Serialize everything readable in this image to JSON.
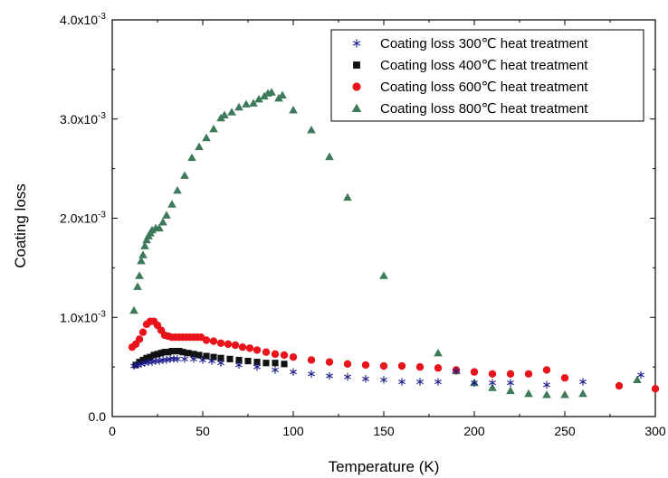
{
  "chart_data": {
    "type": "scatter",
    "title": "",
    "xlabel": "Temperature (K)",
    "ylabel": "Coating loss",
    "xlim": [
      0,
      300
    ],
    "ylim": [
      0,
      0.004
    ],
    "xticks": [
      0,
      50,
      100,
      150,
      200,
      250,
      300
    ],
    "xtick_labels": [
      "0",
      "50",
      "100",
      "150",
      "200",
      "250",
      "300"
    ],
    "yticks": [
      0,
      0.001,
      0.002,
      0.003,
      0.004
    ],
    "ytick_labels": [
      {
        "mant": "0.0",
        "exp": ""
      },
      {
        "mant": "1.0x10",
        "exp": "-3"
      },
      {
        "mant": "2.0x10",
        "exp": "-3"
      },
      {
        "mant": "3.0x10",
        "exp": "-3"
      },
      {
        "mant": "4.0x10",
        "exp": "-3"
      }
    ],
    "grid": false,
    "legend_position": "top-right",
    "series": [
      {
        "name": "Coating loss 300℃ heat treatment",
        "marker": "asterisk",
        "color": "#1a1a8c",
        "points": [
          [
            12,
            0.00051
          ],
          [
            14,
            0.00052
          ],
          [
            16,
            0.00053
          ],
          [
            18,
            0.00054
          ],
          [
            20,
            0.00055
          ],
          [
            22,
            0.00055
          ],
          [
            24,
            0.00056
          ],
          [
            26,
            0.00056
          ],
          [
            28,
            0.00057
          ],
          [
            30,
            0.00057
          ],
          [
            32,
            0.00058
          ],
          [
            34,
            0.00058
          ],
          [
            36,
            0.00058
          ],
          [
            40,
            0.00058
          ],
          [
            45,
            0.00058
          ],
          [
            50,
            0.00057
          ],
          [
            55,
            0.00056
          ],
          [
            60,
            0.00054
          ],
          [
            70,
            0.00052
          ],
          [
            80,
            0.0005
          ],
          [
            90,
            0.00047
          ],
          [
            100,
            0.00045
          ],
          [
            110,
            0.00043
          ],
          [
            120,
            0.00041
          ],
          [
            130,
            0.0004
          ],
          [
            140,
            0.00038
          ],
          [
            150,
            0.00037
          ],
          [
            160,
            0.00035
          ],
          [
            170,
            0.00035
          ],
          [
            180,
            0.00035
          ],
          [
            190,
            0.00046
          ],
          [
            200,
            0.00034
          ],
          [
            210,
            0.00034
          ],
          [
            220,
            0.00034
          ],
          [
            240,
            0.00032
          ],
          [
            260,
            0.00035
          ],
          [
            292,
            0.00042
          ]
        ]
      },
      {
        "name": "Coating loss 400℃ heat treatment",
        "marker": "square",
        "color": "#111111",
        "points": [
          [
            13,
            0.00052
          ],
          [
            15,
            0.00055
          ],
          [
            17,
            0.00057
          ],
          [
            19,
            0.00059
          ],
          [
            21,
            0.0006
          ],
          [
            23,
            0.00062
          ],
          [
            25,
            0.00063
          ],
          [
            27,
            0.00064
          ],
          [
            29,
            0.00065
          ],
          [
            31,
            0.00065
          ],
          [
            33,
            0.00066
          ],
          [
            35,
            0.00066
          ],
          [
            37,
            0.00066
          ],
          [
            39,
            0.00065
          ],
          [
            42,
            0.00064
          ],
          [
            45,
            0.00063
          ],
          [
            48,
            0.00062
          ],
          [
            52,
            0.00061
          ],
          [
            56,
            0.0006
          ],
          [
            60,
            0.00059
          ],
          [
            65,
            0.00058
          ],
          [
            70,
            0.00057
          ],
          [
            75,
            0.00056
          ],
          [
            80,
            0.00055
          ],
          [
            85,
            0.00054
          ],
          [
            90,
            0.00054
          ],
          [
            95,
            0.00053
          ]
        ]
      },
      {
        "name": "Coating loss 600℃ heat treatment",
        "marker": "circle",
        "color": "#e8141c",
        "points": [
          [
            11,
            0.0007
          ],
          [
            13,
            0.00073
          ],
          [
            15,
            0.00078
          ],
          [
            17,
            0.00085
          ],
          [
            19,
            0.00093
          ],
          [
            21,
            0.00096
          ],
          [
            23,
            0.00096
          ],
          [
            25,
            0.00092
          ],
          [
            27,
            0.00087
          ],
          [
            29,
            0.00082
          ],
          [
            31,
            0.00081
          ],
          [
            33,
            0.0008
          ],
          [
            35,
            0.0008
          ],
          [
            37,
            0.0008
          ],
          [
            39,
            0.0008
          ],
          [
            41,
            0.0008
          ],
          [
            43,
            0.0008
          ],
          [
            45,
            0.0008
          ],
          [
            47,
            0.0008
          ],
          [
            49,
            0.0008
          ],
          [
            52,
            0.00077
          ],
          [
            56,
            0.00076
          ],
          [
            60,
            0.00074
          ],
          [
            64,
            0.00073
          ],
          [
            68,
            0.00072
          ],
          [
            72,
            0.0007
          ],
          [
            76,
            0.00069
          ],
          [
            80,
            0.00067
          ],
          [
            85,
            0.00065
          ],
          [
            90,
            0.00063
          ],
          [
            95,
            0.00062
          ],
          [
            100,
            0.0006
          ],
          [
            110,
            0.00057
          ],
          [
            120,
            0.00055
          ],
          [
            130,
            0.00053
          ],
          [
            140,
            0.00052
          ],
          [
            150,
            0.00051
          ],
          [
            160,
            0.00051
          ],
          [
            170,
            0.0005
          ],
          [
            180,
            0.00049
          ],
          [
            190,
            0.00047
          ],
          [
            200,
            0.00045
          ],
          [
            210,
            0.00043
          ],
          [
            220,
            0.00043
          ],
          [
            230,
            0.00043
          ],
          [
            240,
            0.00047
          ],
          [
            250,
            0.00039
          ],
          [
            280,
            0.00031
          ],
          [
            300,
            0.00028
          ]
        ]
      },
      {
        "name": "Coating loss 800℃ heat treatment",
        "marker": "triangle",
        "color": "#3d7a5a",
        "points": [
          [
            12,
            0.00107
          ],
          [
            14,
            0.00131
          ],
          [
            15,
            0.00142
          ],
          [
            16,
            0.00157
          ],
          [
            17,
            0.00163
          ],
          [
            18,
            0.00172
          ],
          [
            19,
            0.00178
          ],
          [
            20,
            0.00182
          ],
          [
            21,
            0.00185
          ],
          [
            22,
            0.00188
          ],
          [
            24,
            0.0019
          ],
          [
            26,
            0.0019
          ],
          [
            28,
            0.00196
          ],
          [
            30,
            0.00203
          ],
          [
            33,
            0.00214
          ],
          [
            36,
            0.00228
          ],
          [
            40,
            0.00243
          ],
          [
            44,
            0.00261
          ],
          [
            48,
            0.00272
          ],
          [
            52,
            0.00281
          ],
          [
            56,
            0.0029
          ],
          [
            60,
            0.00301
          ],
          [
            62,
            0.00304
          ],
          [
            66,
            0.00307
          ],
          [
            70,
            0.00312
          ],
          [
            74,
            0.00315
          ],
          [
            78,
            0.00316
          ],
          [
            81,
            0.0032
          ],
          [
            84,
            0.00323
          ],
          [
            86,
            0.00326
          ],
          [
            88,
            0.00327
          ],
          [
            92,
            0.00321
          ],
          [
            94,
            0.00324
          ],
          [
            100,
            0.00309
          ],
          [
            110,
            0.00289
          ],
          [
            120,
            0.00262
          ],
          [
            130,
            0.00221
          ],
          [
            150,
            0.00142
          ],
          [
            180,
            0.00064
          ],
          [
            190,
            0.00046
          ],
          [
            200,
            0.00034
          ],
          [
            210,
            0.00029
          ],
          [
            220,
            0.00026
          ],
          [
            230,
            0.00023
          ],
          [
            240,
            0.00022
          ],
          [
            250,
            0.00022
          ],
          [
            260,
            0.00023
          ],
          [
            290,
            0.00037
          ]
        ]
      }
    ]
  }
}
